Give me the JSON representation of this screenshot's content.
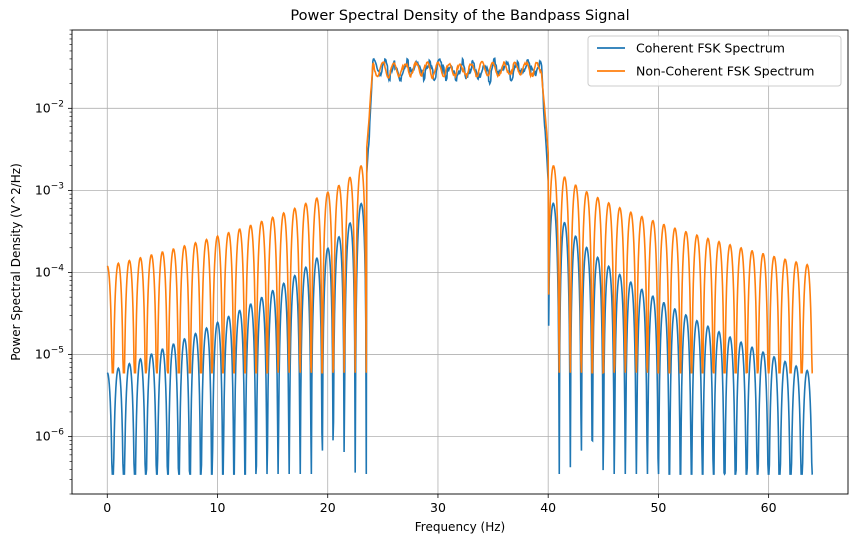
{
  "chart_data": {
    "type": "line",
    "title": "Power Spectral Density of the Bandpass Signal",
    "xlabel": "Frequency (Hz)",
    "ylabel": "Power Spectral Density (V^2/Hz)",
    "xlim": [
      -3.2,
      67.2
    ],
    "ylim": [
      2e-07,
      0.09
    ],
    "yscale": "log",
    "x_ticks": [
      0,
      10,
      20,
      30,
      40,
      50,
      60
    ],
    "y_ticks": [
      {
        "value": 1e-06,
        "base": "10",
        "exp": "−6"
      },
      {
        "value": 1e-05,
        "base": "10",
        "exp": "−5"
      },
      {
        "value": 0.0001,
        "base": "10",
        "exp": "−4"
      },
      {
        "value": 0.001,
        "base": "10",
        "exp": "−3"
      },
      {
        "value": 0.01,
        "base": "10",
        "exp": "−2"
      }
    ],
    "grid": true,
    "legend_position": "top-right",
    "series": [
      {
        "name": "Coherent FSK Spectrum",
        "color": "#1f77b4",
        "band": [
          23.5,
          40.0
        ],
        "passband_level": 0.03,
        "sidelobe_peak_near_zero": 6e-06,
        "sidelobe_peak_at_band_edge": 0.0013,
        "null_level": 3.5e-07,
        "lobe_spacing_hz": 1.0
      },
      {
        "name": "Non-Coherent FSK Spectrum",
        "color": "#ff7f0e",
        "band": [
          23.5,
          40.0
        ],
        "passband_level": 0.03,
        "sidelobe_peak_near_zero": 0.00012,
        "sidelobe_peak_at_band_edge": 0.0029,
        "null_level": 6e-06,
        "lobe_spacing_hz": 1.0
      }
    ]
  }
}
